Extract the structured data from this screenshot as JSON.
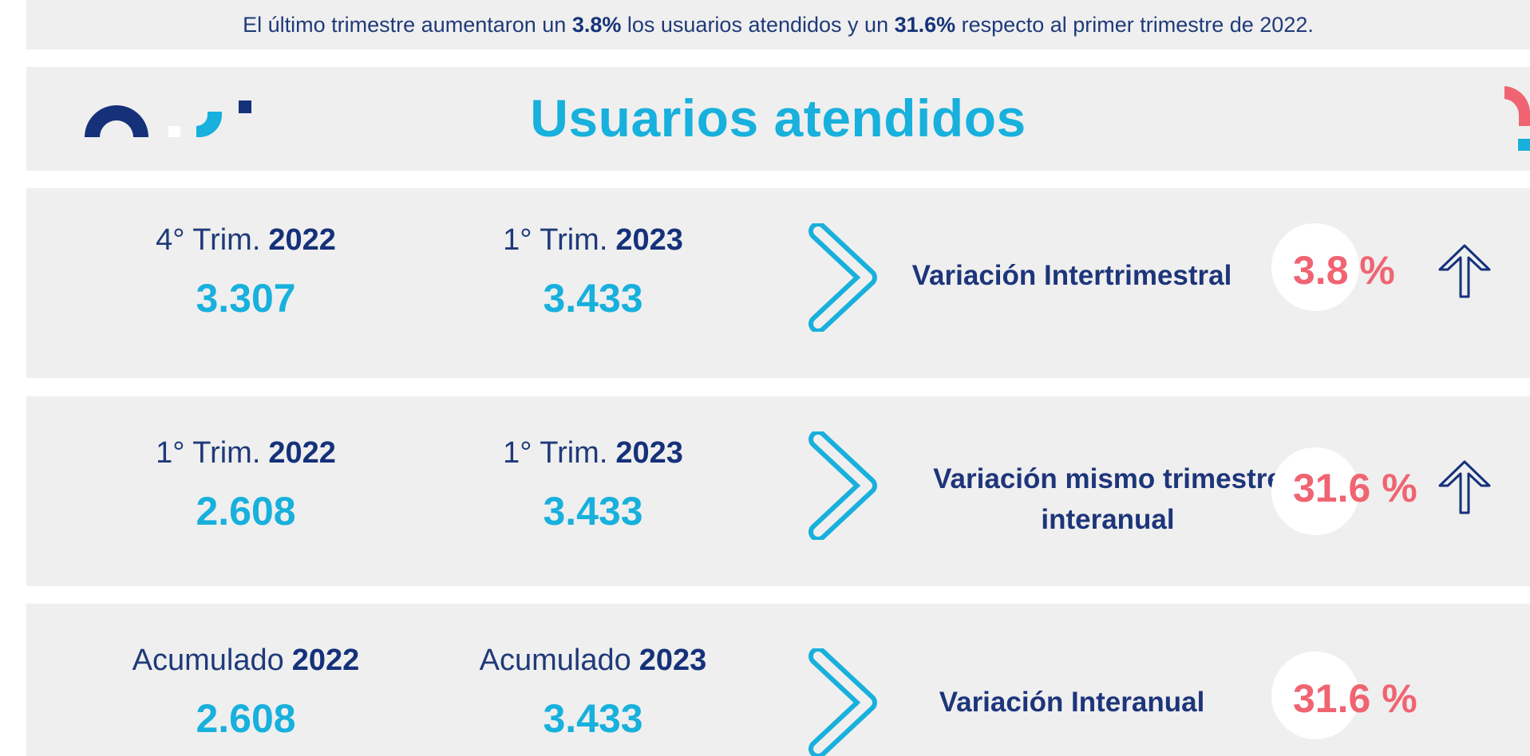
{
  "summary": {
    "part1": "El último trimestre aumentaron un ",
    "bold1": "3.8%",
    "part2": " los usuarios atendidos y un ",
    "bold2": "31.6%",
    "part3": " respecto al primer trimestre de 2022."
  },
  "header": {
    "title": "Usuarios atendidos"
  },
  "rows": [
    {
      "a": {
        "label": "4° Trim.",
        "year": "2022",
        "value": "3.307"
      },
      "b": {
        "label": "1° Trim.",
        "year": "2023",
        "value": "3.433"
      },
      "variation": {
        "line1": "Variación Intertrimestral",
        "line2": ""
      },
      "percent": "3.8 %",
      "trend": "up-arrow-icon"
    },
    {
      "a": {
        "label": "1° Trim.",
        "year": "2022",
        "value": "2.608"
      },
      "b": {
        "label": "1° Trim.",
        "year": "2023",
        "value": "3.433"
      },
      "variation": {
        "line1": "Variación mismo trimestre",
        "line2": "interanual"
      },
      "percent": "31.6 %",
      "trend": "up-arrow-icon"
    },
    {
      "a": {
        "label": "Acumulado",
        "year": "2022",
        "value": "2.608"
      },
      "b": {
        "label": "Acumulado",
        "year": "2023",
        "value": "3.433"
      },
      "variation": {
        "line1": "Variación Interanual",
        "line2": ""
      },
      "percent": "31.6 %",
      "trend": ""
    }
  ],
  "colors": {
    "navy": "#15317a",
    "cyan": "#18b0dc",
    "coral": "#f06472",
    "panel": "#efefef"
  }
}
